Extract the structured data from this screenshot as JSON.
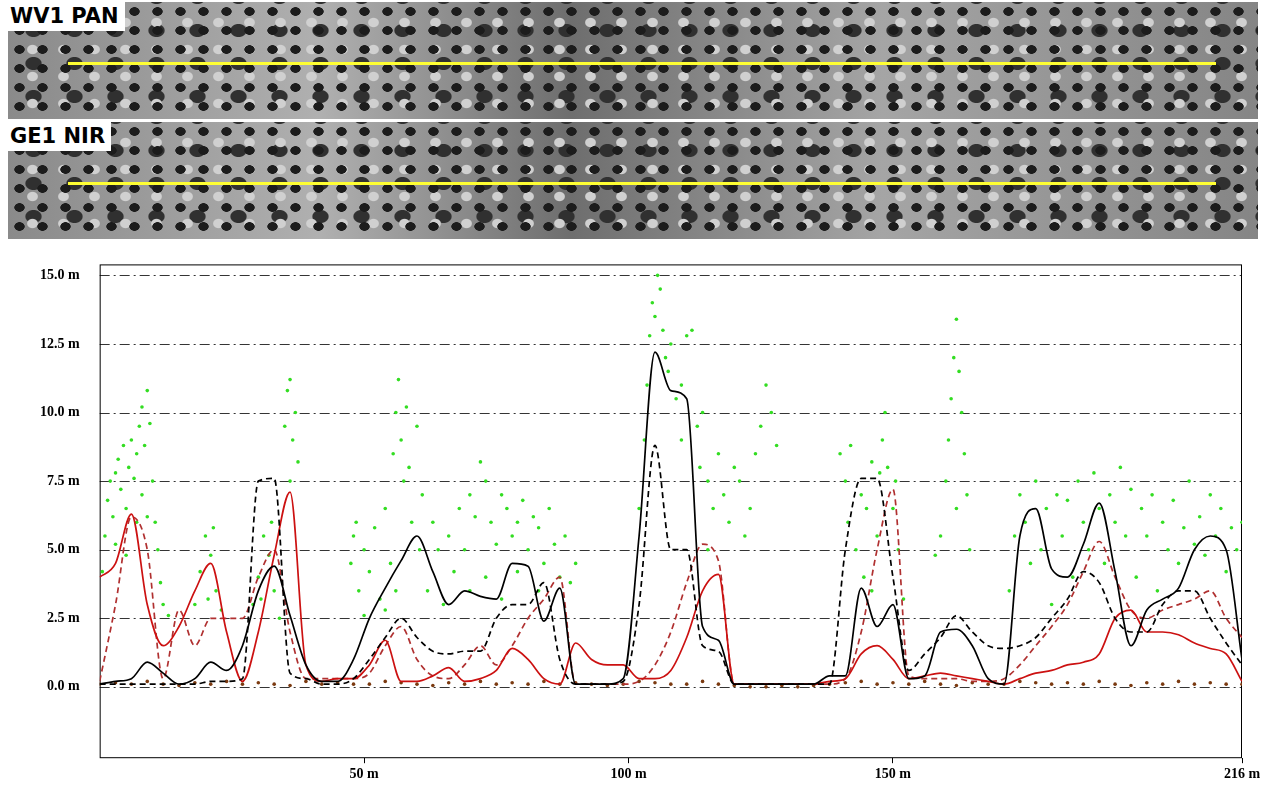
{
  "images": [
    {
      "label": "WV1 PAN"
    },
    {
      "label": "GE1 NIR"
    }
  ],
  "chart_data": {
    "type": "scatter",
    "xlim": [
      0,
      216
    ],
    "xticks": [
      {
        "value": 50,
        "label": "50 m"
      },
      {
        "value": 100,
        "label": "100 m"
      },
      {
        "value": 150,
        "label": "150 m"
      },
      {
        "value": 216,
        "label": "216 m"
      }
    ],
    "ylim": [
      -2.6,
      15.4
    ],
    "yticks": [
      {
        "value": 0,
        "label": "0.0 m"
      },
      {
        "value": 2.5,
        "label": "2.5 m"
      },
      {
        "value": 5,
        "label": "5.0 m"
      },
      {
        "value": 7.5,
        "label": "7.5 m"
      },
      {
        "value": 10,
        "label": "10.0 m"
      },
      {
        "value": 12.5,
        "label": "12.5 m"
      },
      {
        "value": 15,
        "label": "15.0 m"
      }
    ],
    "grid": true,
    "x": [
      0,
      3,
      6,
      9,
      12,
      15,
      18,
      21,
      24,
      27,
      30,
      33,
      36,
      39,
      42,
      45,
      48,
      51,
      54,
      57,
      60,
      63,
      66,
      69,
      72,
      75,
      78,
      81,
      84,
      87,
      90,
      93,
      96,
      99,
      102,
      105,
      108,
      111,
      114,
      117,
      120,
      123,
      126,
      129,
      132,
      135,
      138,
      141,
      144,
      147,
      150,
      153,
      156,
      159,
      162,
      165,
      168,
      171,
      174,
      177,
      180,
      183,
      186,
      189,
      192,
      195,
      198,
      201,
      204,
      207,
      210,
      213,
      216
    ],
    "series": [
      {
        "type": "scatter",
        "color": "#33dd22",
        "marker": "circle",
        "x": [
          0.5,
          1,
          1.5,
          2,
          2.5,
          3,
          3.5,
          4,
          4.5,
          5,
          5.5,
          6,
          6.5,
          7,
          7.5,
          8,
          8.5,
          9,
          9.5,
          10,
          10.5,
          11,
          11.5,
          7,
          8,
          9,
          3,
          5,
          12,
          13,
          18,
          19,
          20,
          21,
          22,
          23,
          20.5,
          21.5,
          29,
          30,
          31,
          32,
          33,
          34,
          35,
          35.5,
          36,
          36.5,
          37,
          37.5,
          36,
          32.5,
          30.5,
          47.5,
          48,
          48.5,
          49,
          50,
          51,
          52,
          53,
          54,
          55,
          55.5,
          56,
          56.5,
          57,
          57.5,
          58,
          58.5,
          59,
          60,
          60.5,
          61,
          62,
          63,
          64,
          65,
          54,
          50,
          56,
          66,
          67,
          68,
          69,
          70,
          71,
          72,
          73,
          74,
          75,
          76,
          77,
          78,
          79,
          80,
          81,
          82,
          83,
          84,
          85,
          86,
          87,
          88,
          89,
          90,
          73,
          79,
          83,
          70,
          76,
          102,
          103,
          103.5,
          104,
          104.5,
          105,
          105.5,
          106,
          106.5,
          107,
          107.5,
          108,
          109,
          110,
          111,
          112,
          113,
          113.5,
          114,
          115,
          116,
          117,
          118,
          119,
          120,
          121,
          122,
          123,
          124,
          125,
          126,
          127,
          128,
          110,
          115,
          140,
          141,
          141.5,
          142,
          143,
          144,
          144.5,
          145,
          146,
          147,
          147.5,
          148,
          148.5,
          149,
          150,
          150.5,
          151,
          152,
          146,
          158,
          159,
          160,
          160.5,
          161,
          161.5,
          162,
          162.5,
          163,
          163.5,
          164,
          164.5,
          162,
          172,
          173,
          174,
          175,
          176,
          177,
          178,
          179,
          180,
          181,
          182,
          183,
          184,
          185,
          186,
          187,
          188,
          189,
          190,
          191,
          192,
          193,
          194,
          195,
          196,
          197,
          198,
          199,
          200,
          201,
          202,
          203,
          204,
          205,
          206,
          207,
          208,
          209,
          210,
          211,
          212,
          213,
          214,
          215,
          216
        ],
        "values": [
          4.2,
          5.5,
          6.8,
          7.5,
          6.2,
          7.8,
          8.3,
          7.2,
          8.8,
          6.5,
          8.0,
          9.0,
          7.6,
          8.5,
          9.5,
          10.2,
          8.8,
          10.8,
          9.6,
          7.5,
          6.0,
          5.0,
          3.8,
          6.0,
          7.0,
          6.2,
          5.2,
          4.8,
          3.0,
          2.6,
          3.0,
          4.2,
          5.5,
          4.8,
          3.5,
          2.8,
          3.2,
          5.8,
          3.0,
          4.0,
          5.5,
          4.8,
          3.5,
          2.5,
          9.5,
          10.8,
          11.2,
          9.0,
          10.0,
          8.2,
          7.5,
          6.0,
          3.2,
          4.5,
          5.5,
          6.0,
          3.5,
          5.0,
          4.2,
          5.8,
          3.2,
          6.5,
          4.5,
          8.5,
          10.0,
          11.2,
          9.0,
          7.5,
          10.2,
          8.0,
          6.0,
          9.5,
          5.0,
          7.0,
          3.5,
          6.0,
          5.0,
          3.0,
          2.8,
          2.6,
          3.5,
          5.5,
          4.2,
          6.5,
          5.0,
          7.0,
          6.2,
          8.2,
          7.5,
          6.0,
          5.2,
          7.0,
          6.5,
          5.5,
          6.0,
          6.8,
          5.0,
          6.2,
          5.8,
          4.5,
          6.5,
          5.2,
          4.0,
          5.5,
          3.8,
          4.5,
          4.0,
          4.2,
          3.5,
          3.5,
          3.2,
          6.5,
          9.0,
          11.0,
          12.8,
          14.0,
          13.5,
          15.0,
          14.5,
          13.0,
          12.0,
          11.5,
          12.5,
          10.5,
          11.0,
          12.8,
          13.0,
          9.5,
          8.0,
          10.0,
          7.5,
          6.5,
          8.5,
          7.0,
          6.0,
          8.0,
          7.5,
          5.5,
          6.5,
          8.5,
          9.5,
          11.0,
          10.0,
          8.8,
          9.0,
          5.0,
          8.5,
          7.5,
          6.0,
          8.8,
          5.0,
          7.0,
          4.0,
          6.5,
          3.5,
          5.5,
          7.8,
          9.0,
          10.0,
          8.0,
          6.5,
          7.5,
          5.0,
          3.2,
          8.2,
          4.8,
          5.5,
          7.5,
          9.0,
          10.5,
          12.0,
          13.4,
          11.5,
          10.0,
          8.5,
          7.0,
          5.0,
          6.5,
          3.5,
          5.5,
          7.0,
          6.0,
          4.5,
          7.5,
          5.0,
          6.5,
          3.0,
          7.0,
          5.5,
          6.8,
          4.0,
          7.5,
          6.0,
          5.0,
          7.8,
          6.5,
          4.5,
          7.0,
          6.0,
          8.0,
          5.5,
          7.2,
          4.0,
          6.5,
          5.5,
          7.0,
          3.5,
          6.0,
          5.0,
          6.8,
          4.5,
          5.8,
          7.5,
          5.2,
          6.2,
          4.8,
          7.0,
          5.5,
          6.5,
          4.2,
          5.8,
          5.0,
          6.0
        ]
      },
      {
        "type": "scatter",
        "color": "#7b3a10",
        "marker": "circle",
        "values": [
          0.1,
          0.15,
          0.1,
          0.2,
          0.1,
          0.05,
          0.15,
          0.1,
          0.2,
          0.1,
          0.15,
          0.1,
          0.05,
          0.2,
          0.1,
          0.15,
          0.1,
          0.1,
          0.2,
          0.15,
          0.1,
          0.05,
          0.15,
          0.1,
          0.2,
          0.1,
          0.15,
          0.1,
          0.2,
          0.1,
          0.15,
          0.1,
          0.05,
          0.1,
          0.2,
          0.15,
          0.1,
          0.1,
          0.2,
          0.1,
          0.05,
          0.0,
          0.0,
          0.05,
          0.0,
          0.05,
          0.1,
          0.15,
          0.2,
          0.1,
          0.15,
          0.1,
          0.2,
          0.1,
          0.05,
          0.15,
          0.1,
          0.1,
          0.2,
          0.15,
          0.1,
          0.15,
          0.1,
          0.2,
          0.1,
          0.05,
          0.15,
          0.1,
          0.2,
          0.1,
          0.15,
          0.1,
          0.1
        ]
      },
      {
        "type": "line",
        "color": "#000000",
        "line_style": "solid",
        "values": [
          0.1,
          0.2,
          0.3,
          0.9,
          0.5,
          0.1,
          0.3,
          0.9,
          0.6,
          1.5,
          3.5,
          4.4,
          2.6,
          0.8,
          0.2,
          0.2,
          1.0,
          2.5,
          3.6,
          4.6,
          5.5,
          4.2,
          3.0,
          3.5,
          3.3,
          3.2,
          4.5,
          4.4,
          2.4,
          3.6,
          0.1,
          0.1,
          0.1,
          0.3,
          5.5,
          12.2,
          10.8,
          10.5,
          2.2,
          1.7,
          0.1,
          0.1,
          0.1,
          0.1,
          0.1,
          0.1,
          0.4,
          0.4,
          3.6,
          2.2,
          3.0,
          0.3,
          0.4,
          2.0,
          2.1,
          1.5,
          0.3,
          0.1,
          5.5,
          6.5,
          4.3,
          4.0,
          5.2,
          6.7,
          4.2,
          1.5,
          2.8,
          3.2,
          3.6,
          5.0,
          5.5,
          5.0,
          1.0
        ]
      },
      {
        "type": "line",
        "color": "#000000",
        "line_style": "dashed",
        "values": [
          0.1,
          0.1,
          0.1,
          0.1,
          0.1,
          0.1,
          0.1,
          0.2,
          0.2,
          0.3,
          7.5,
          7.6,
          0.5,
          0.3,
          0.1,
          0.1,
          0.3,
          1.0,
          1.8,
          2.5,
          1.8,
          1.3,
          1.2,
          1.3,
          1.3,
          2.5,
          3.0,
          3.0,
          3.8,
          1.0,
          0.1,
          0.1,
          0.1,
          0.2,
          3.0,
          8.8,
          5.0,
          5.0,
          1.5,
          1.3,
          0.1,
          0.1,
          0.1,
          0.1,
          0.1,
          0.1,
          0.1,
          5.0,
          7.6,
          7.6,
          4.0,
          0.6,
          1.2,
          1.8,
          2.6,
          2.0,
          1.5,
          1.4,
          1.5,
          1.8,
          2.5,
          3.2,
          4.2,
          3.8,
          2.5,
          2.0,
          2.0,
          3.0,
          3.5,
          3.5,
          2.5,
          1.6,
          0.8
        ]
      },
      {
        "type": "line",
        "color": "#cc1111",
        "line_style": "solid",
        "values": [
          4.0,
          4.5,
          6.3,
          3.0,
          1.5,
          2.2,
          3.5,
          4.5,
          2.0,
          0.2,
          2.0,
          4.8,
          7.1,
          0.8,
          0.2,
          0.3,
          0.3,
          0.8,
          1.7,
          0.2,
          0.2,
          0.4,
          0.7,
          0.2,
          0.3,
          0.6,
          1.4,
          1.0,
          0.3,
          0.1,
          1.6,
          1.0,
          0.8,
          0.8,
          0.3,
          0.3,
          0.6,
          1.8,
          3.5,
          4.1,
          0.1,
          0.1,
          0.1,
          0.1,
          0.1,
          0.1,
          0.2,
          0.3,
          1.2,
          1.5,
          1.0,
          0.3,
          0.4,
          0.5,
          0.4,
          0.3,
          0.2,
          0.1,
          0.3,
          0.5,
          0.6,
          0.8,
          0.9,
          1.2,
          2.5,
          2.8,
          2.0,
          2.0,
          1.9,
          1.6,
          1.4,
          1.2,
          0.2
        ]
      },
      {
        "type": "line",
        "color": "#b03030",
        "line_style": "dashed",
        "values": [
          0.2,
          3.0,
          6.2,
          5.0,
          0.3,
          2.8,
          1.5,
          2.5,
          2.5,
          2.5,
          4.0,
          5.0,
          2.0,
          0.3,
          0.3,
          0.3,
          0.3,
          0.5,
          1.5,
          2.2,
          1.0,
          0.4,
          0.3,
          0.8,
          1.5,
          0.8,
          1.5,
          2.5,
          3.2,
          4.0,
          0.1,
          0.1,
          0.1,
          0.1,
          0.2,
          0.8,
          2.0,
          3.8,
          5.2,
          4.6,
          0.1,
          0.1,
          0.1,
          0.1,
          0.1,
          0.1,
          0.1,
          0.3,
          2.0,
          5.0,
          7.2,
          0.4,
          0.3,
          0.3,
          0.3,
          0.2,
          0.2,
          0.3,
          0.8,
          1.5,
          2.2,
          3.0,
          4.2,
          5.3,
          4.0,
          2.8,
          2.5,
          2.8,
          3.0,
          3.2,
          3.5,
          2.5,
          1.8
        ]
      }
    ]
  }
}
